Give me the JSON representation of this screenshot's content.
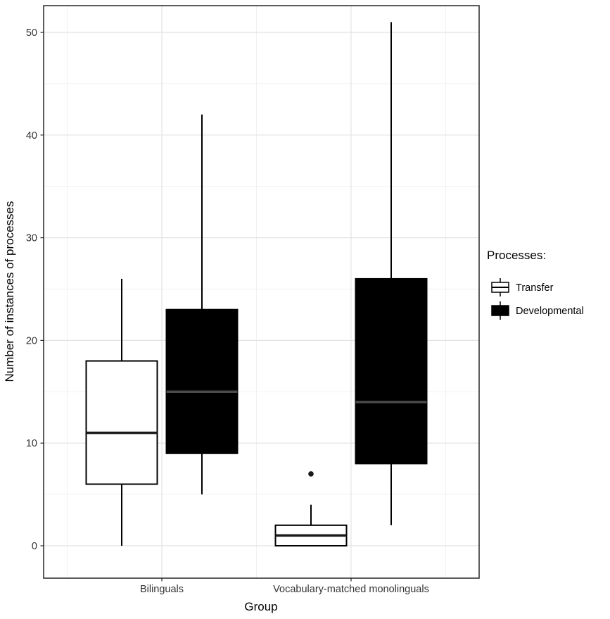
{
  "chart_data": {
    "type": "boxplot",
    "title": "",
    "xlabel": "Group",
    "ylabel": "Number of instances of processes",
    "ylim": [
      0,
      50
    ],
    "yticks": [
      0,
      10,
      20,
      30,
      40,
      50
    ],
    "yticks_minor": [
      5,
      15,
      25,
      35,
      45
    ],
    "categories": [
      "Bilinguals",
      "Vocabulary-matched monolinguals"
    ],
    "legend": {
      "title": "Processes:",
      "position": "right",
      "entries": [
        {
          "label": "Transfer",
          "fill": "#ffffff"
        },
        {
          "label": "Developmental",
          "fill": "#000000"
        }
      ]
    },
    "series": [
      {
        "name": "Transfer",
        "fill": "#ffffff",
        "boxes": [
          {
            "category": "Bilinguals",
            "whisker_low": 0,
            "q1": 6,
            "median": 11,
            "q3": 18,
            "whisker_high": 26,
            "outliers": []
          },
          {
            "category": "Vocabulary-matched monolinguals",
            "whisker_low": 0,
            "q1": 0,
            "median": 1,
            "q3": 2,
            "whisker_high": 4,
            "outliers": [
              7
            ]
          }
        ]
      },
      {
        "name": "Developmental",
        "fill": "#000000",
        "boxes": [
          {
            "category": "Bilinguals",
            "whisker_low": 5,
            "q1": 9,
            "median": 15,
            "q3": 23,
            "whisker_high": 42,
            "outliers": []
          },
          {
            "category": "Vocabulary-matched monolinguals",
            "whisker_low": 2,
            "q1": 8,
            "median": 14,
            "q3": 26,
            "whisker_high": 51,
            "outliers": []
          }
        ]
      }
    ],
    "colors": {
      "box_stroke": "#000000",
      "median_on_white": "#1a1a1a",
      "median_on_black": "#4a4a4a",
      "outlier": "#1a1a1a",
      "grid_major": "#e2e2e2",
      "grid_minor": "#efefef",
      "panel_border": "#262626",
      "tick_text": "#333333",
      "axis_title_text": "#000000",
      "panel_background": "#ffffff"
    },
    "grid": "on"
  }
}
